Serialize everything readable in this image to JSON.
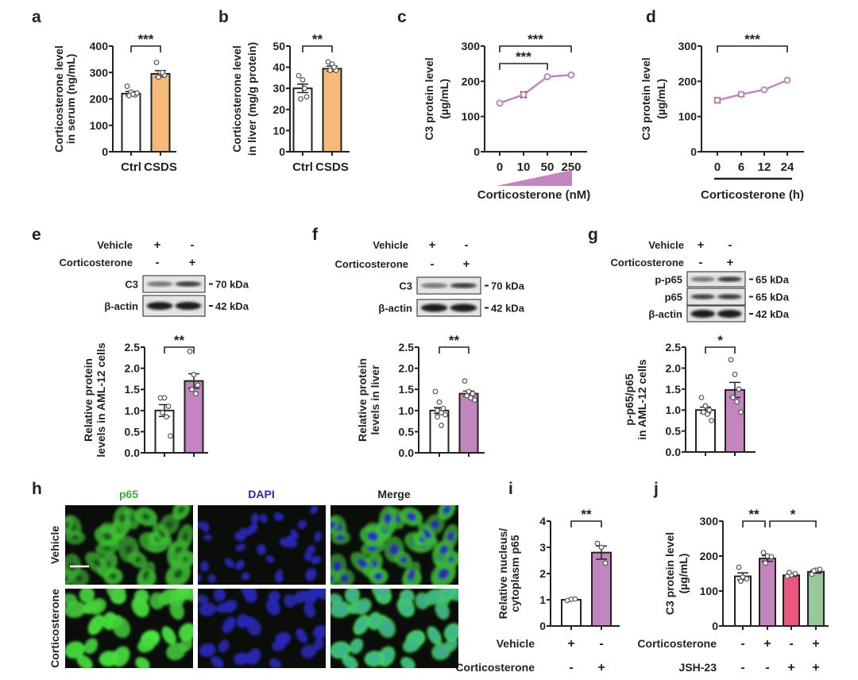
{
  "panel_letters": [
    "a",
    "b",
    "c",
    "d",
    "e",
    "f",
    "g",
    "h",
    "i",
    "j"
  ],
  "colors": {
    "ctrl": "#ffffff",
    "csds": "#f5b97a",
    "corticosterone": "#c285bd",
    "jsh23": "#e8587f",
    "cort_jsh23": "#98c89a",
    "p65": "#3aaa35",
    "dapi": "#2b2bb0",
    "axis": "#222222"
  },
  "chart_data": [
    {
      "panel": "a",
      "type": "bar",
      "ylabel": [
        "Corticosterone level",
        "in serum (ng/mL)"
      ],
      "ylim": [
        0,
        400
      ],
      "yticks": [
        "0",
        "100",
        "200",
        "300",
        "400"
      ],
      "categories": [
        "Ctrl",
        "CSDS"
      ],
      "values": [
        220,
        295
      ],
      "sem": [
        8,
        12
      ],
      "points": [
        [
          248,
          226,
          215,
          212,
          218,
          222
        ],
        [
          338,
          300,
          290,
          282,
          300
        ]
      ],
      "bar_colors": [
        "#ffffff",
        "#f5b97a"
      ],
      "significance": [
        {
          "from": 0,
          "to": 1,
          "label": "***"
        }
      ]
    },
    {
      "panel": "b",
      "type": "bar",
      "ylabel": [
        "Corticosterone level",
        "in liver (mg/g protein)"
      ],
      "ylim": [
        0,
        50
      ],
      "yticks": [
        "0",
        "10",
        "20",
        "30",
        "40",
        "50"
      ],
      "categories": [
        "Ctrl",
        "CSDS"
      ],
      "values": [
        30,
        39.3
      ],
      "sem": [
        2,
        1.2
      ],
      "points": [
        [
          36,
          34,
          26,
          25,
          30
        ],
        [
          42.5,
          41.5,
          38.5,
          38.5,
          40
        ]
      ],
      "bar_colors": [
        "#ffffff",
        "#f5b97a"
      ],
      "significance": [
        {
          "from": 0,
          "to": 1,
          "label": "**"
        }
      ]
    },
    {
      "panel": "c",
      "type": "line",
      "ylabel": [
        "C3 protein level",
        "(µg/mL)"
      ],
      "xlabel": "Corticosterone (nM)",
      "ylim": [
        0,
        300
      ],
      "yticks": [
        "0",
        "100",
        "200",
        "300"
      ],
      "x": [
        "0",
        "10",
        "50",
        "250"
      ],
      "values": [
        138,
        162,
        213,
        218
      ],
      "sem": [
        3,
        8,
        2,
        2
      ],
      "line_color": "#c285bd",
      "significance": [
        {
          "from": 0,
          "to": 3,
          "label": "***"
        },
        {
          "from": 0,
          "to": 2,
          "label": "***"
        }
      ]
    },
    {
      "panel": "d",
      "type": "line",
      "ylabel": [
        "C3 protein level",
        "(µg/mL)"
      ],
      "xlabel": "Corticosterone (h)",
      "ylim": [
        0,
        300
      ],
      "yticks": [
        "0",
        "100",
        "200",
        "300"
      ],
      "x": [
        "0",
        "6",
        "12",
        "24"
      ],
      "values": [
        146,
        163,
        176,
        203
      ],
      "sem": [
        7,
        6,
        3,
        3
      ],
      "line_color": "#c285bd",
      "significance": [
        {
          "from": 0,
          "to": 3,
          "label": "***"
        }
      ]
    },
    {
      "panel": "e",
      "type": "bar",
      "ylabel": [
        "Relative protein",
        "levels in AML-12 cells"
      ],
      "ylim": [
        0,
        2.5
      ],
      "yticks": [
        "0.0",
        "0.5",
        "1.0",
        "1.5",
        "2.0",
        "2.5"
      ],
      "values": [
        1.0,
        1.7
      ],
      "sem": [
        0.14,
        0.17
      ],
      "points": [
        [
          1.3,
          1.3,
          1.1,
          0.95,
          0.85,
          0.4
        ],
        [
          2.4,
          1.85,
          1.6,
          1.5,
          1.4
        ]
      ],
      "bar_colors": [
        "#ffffff",
        "#c285bd"
      ],
      "significance": [
        {
          "from": 0,
          "to": 1,
          "label": "**"
        }
      ]
    },
    {
      "panel": "f",
      "type": "bar",
      "ylabel": [
        "Relative protein",
        "levels in liver"
      ],
      "ylim": [
        0,
        2.5
      ],
      "yticks": [
        "0.0",
        "0.5",
        "1.0",
        "1.5",
        "2.0",
        "2.5"
      ],
      "values": [
        1.0,
        1.4
      ],
      "sem": [
        0.07,
        0.06
      ],
      "points": [
        [
          1.45,
          1.2,
          1.05,
          1.0,
          0.95,
          0.9,
          0.85,
          0.65
        ],
        [
          1.7,
          1.45,
          1.4,
          1.35,
          1.3,
          1.25
        ]
      ],
      "bar_colors": [
        "#ffffff",
        "#c285bd"
      ],
      "significance": [
        {
          "from": 0,
          "to": 1,
          "label": "**"
        }
      ]
    },
    {
      "panel": "g",
      "type": "bar",
      "ylabel": [
        "p-p65/p65",
        "in AML-12 cells"
      ],
      "ylim": [
        0,
        2.5
      ],
      "yticks": [
        "0.0",
        "0.5",
        "1.0",
        "1.5",
        "2.0",
        "2.5"
      ],
      "values": [
        1.0,
        1.48
      ],
      "sem": [
        0.07,
        0.18
      ],
      "points": [
        [
          1.3,
          1.1,
          1.0,
          0.95,
          0.9,
          0.75
        ],
        [
          2.2,
          1.85,
          1.5,
          1.3,
          1.2,
          0.95
        ]
      ],
      "bar_colors": [
        "#ffffff",
        "#c285bd"
      ],
      "significance": [
        {
          "from": 0,
          "to": 1,
          "label": "*"
        }
      ]
    },
    {
      "panel": "i",
      "type": "bar",
      "ylabel": [
        "Relative nucleus/",
        "cytoplasm p65"
      ],
      "ylim": [
        0,
        4
      ],
      "yticks": [
        "0",
        "1",
        "2",
        "3",
        "4"
      ],
      "values": [
        1.0,
        2.8
      ],
      "sem": [
        0.02,
        0.25
      ],
      "points": [
        [
          0.97,
          1.02,
          1.03
        ],
        [
          3.15,
          3.0,
          2.4
        ]
      ],
      "bar_colors": [
        "#ffffff",
        "#c285bd"
      ],
      "significance": [
        {
          "from": 0,
          "to": 1,
          "label": "**"
        }
      ],
      "conditions": [
        {
          "label": "Vehicle",
          "signs": [
            "+",
            "-"
          ]
        },
        {
          "label": "Corticosterone",
          "signs": [
            "-",
            "+"
          ]
        }
      ]
    },
    {
      "panel": "j",
      "type": "bar",
      "ylabel": [
        "C3 protein level",
        "(µg/mL)"
      ],
      "ylim": [
        0,
        300
      ],
      "yticks": [
        "0",
        "100",
        "200",
        "300"
      ],
      "values": [
        142,
        193,
        145,
        155
      ],
      "sem": [
        10,
        8,
        3,
        4
      ],
      "points": [
        [
          168,
          140,
          135,
          128
        ],
        [
          210,
          200,
          198,
          180
        ],
        [
          142,
          146,
          150,
          153
        ],
        [
          148,
          160,
          162,
          158
        ]
      ],
      "bar_colors": [
        "#ffffff",
        "#c285bd",
        "#e8587f",
        "#98c89a"
      ],
      "significance": [
        {
          "from": 0,
          "to": 1,
          "label": "**"
        },
        {
          "from": 1,
          "to": 3,
          "label": "*"
        }
      ],
      "conditions": [
        {
          "label": "Corticosterone",
          "signs": [
            "-",
            "+",
            "-",
            "+"
          ]
        },
        {
          "label": "JSH-23",
          "signs": [
            "-",
            "-",
            "+",
            "+"
          ]
        }
      ]
    }
  ],
  "blots": [
    {
      "panel": "e",
      "conditions": [
        {
          "label": "Vehicle",
          "signs": [
            "+",
            "-"
          ]
        },
        {
          "label": "Corticosterone",
          "signs": [
            "-",
            "+"
          ]
        }
      ],
      "bands": [
        {
          "label": "C3",
          "kda": "70 kDa"
        },
        {
          "label": "β-actin",
          "kda": "42 kDa"
        }
      ]
    },
    {
      "panel": "f",
      "conditions": [
        {
          "label": "Vehicle",
          "signs": [
            "+",
            "-"
          ]
        },
        {
          "label": "Corticosterone",
          "signs": [
            "-",
            "+"
          ]
        }
      ],
      "bands": [
        {
          "label": "C3",
          "kda": "70 kDa"
        },
        {
          "label": "β-actin",
          "kda": "42 kDa"
        }
      ]
    },
    {
      "panel": "g",
      "conditions": [
        {
          "label": "Vehicle",
          "signs": [
            "+",
            "-"
          ]
        },
        {
          "label": "Corticosterone",
          "signs": [
            "-",
            "+"
          ]
        }
      ],
      "bands": [
        {
          "label": "p-p65",
          "kda": "65 kDa"
        },
        {
          "label": "p65",
          "kda": "65 kDa"
        },
        {
          "label": "β-actin",
          "kda": "42 kDa"
        }
      ]
    }
  ],
  "micrographs": {
    "columns": [
      "p65",
      "DAPI",
      "Merge"
    ],
    "rows": [
      "Vehicle",
      "Corticosterone"
    ]
  }
}
